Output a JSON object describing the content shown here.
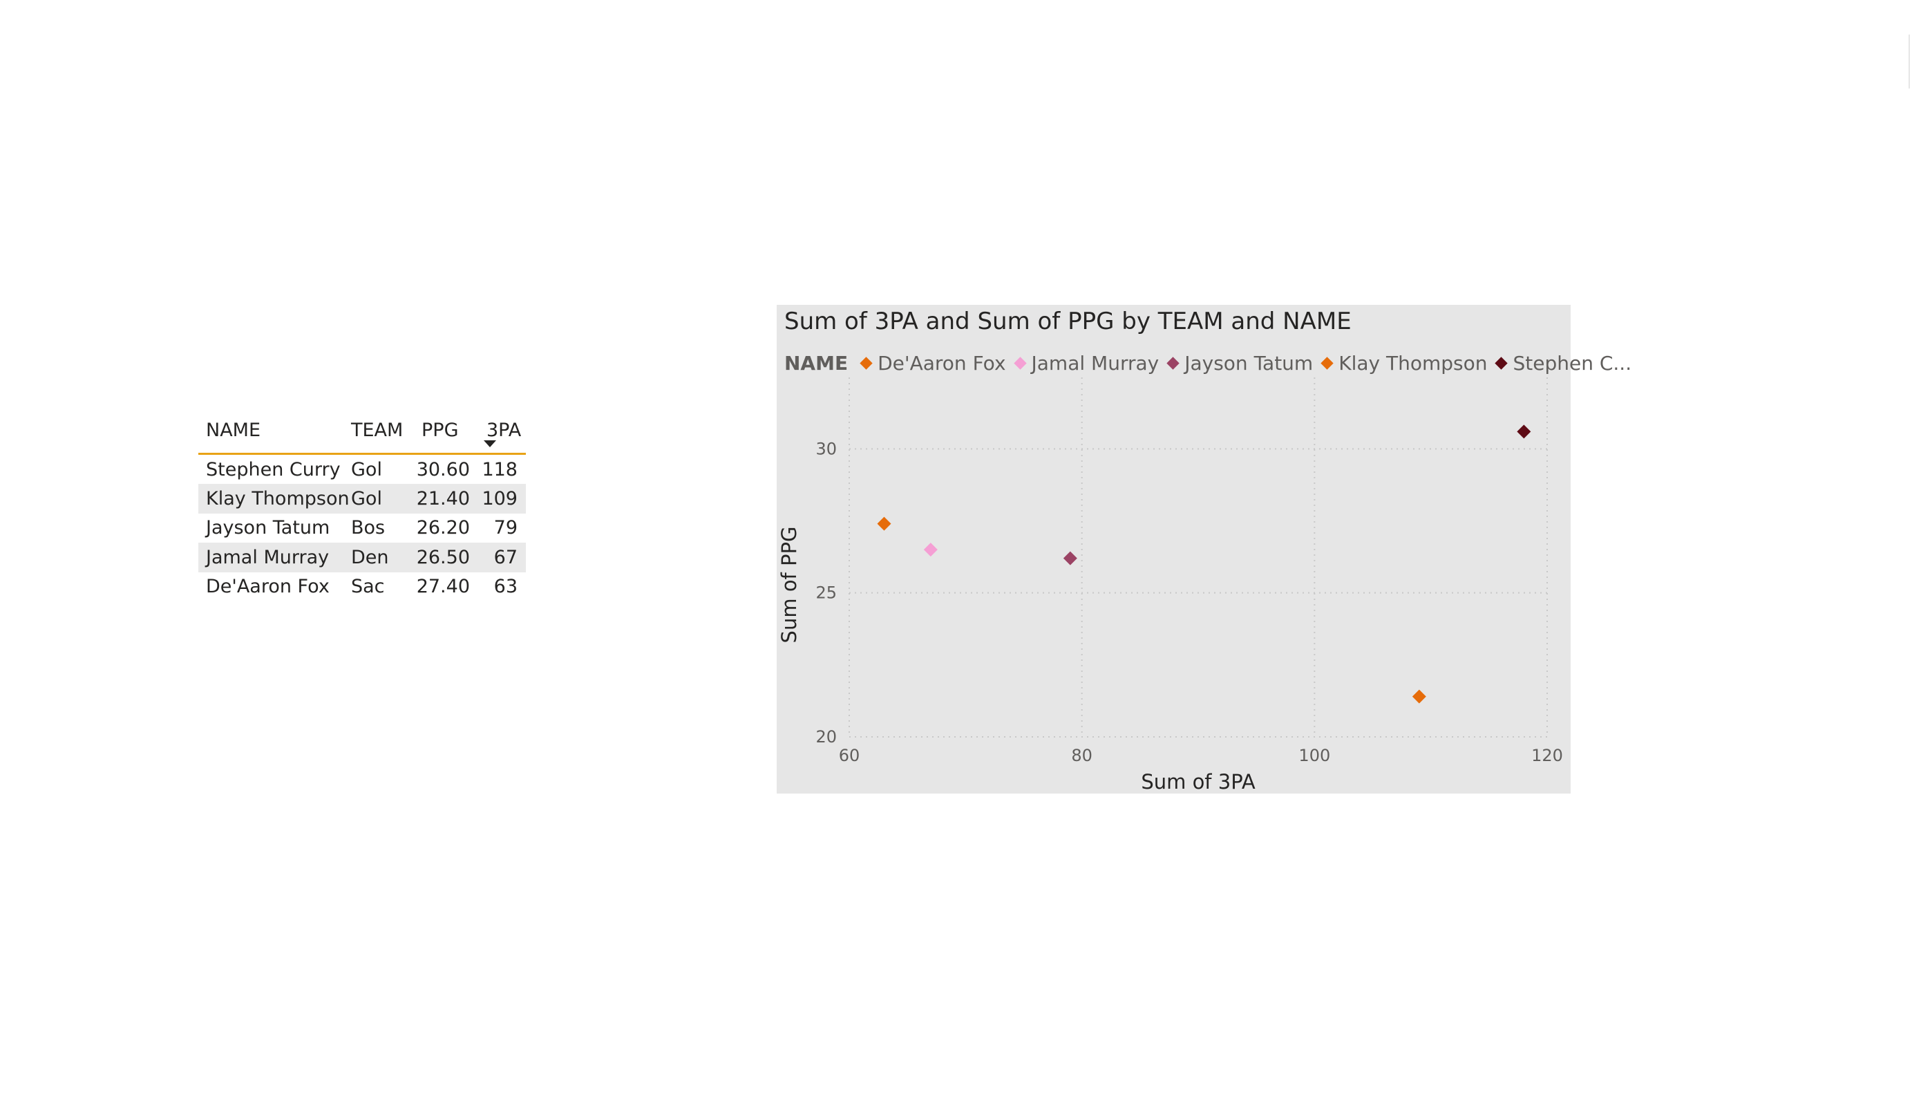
{
  "table": {
    "columns": [
      "NAME",
      "TEAM",
      "PPG",
      "3PA"
    ],
    "rows": [
      [
        "Stephen Curry",
        "Gol",
        "30.60",
        "118"
      ],
      [
        "Klay Thompson",
        "Gol",
        "21.40",
        "109"
      ],
      [
        "Jayson Tatum",
        "Bos",
        "26.20",
        "79"
      ],
      [
        "Jamal Murray",
        "Den",
        "26.50",
        "67"
      ],
      [
        "De'Aaron Fox",
        "Sac",
        "27.40",
        "63"
      ]
    ]
  },
  "chart_data": {
    "type": "scatter",
    "title": "Sum of 3PA and Sum of PPG by TEAM and NAME",
    "xlabel": "Sum of 3PA",
    "ylabel": "Sum of PPG",
    "xlim": [
      60,
      120
    ],
    "ylim": [
      20,
      32
    ],
    "xticks": [
      60,
      80,
      100,
      120
    ],
    "yticks": [
      20,
      25,
      30
    ],
    "grid": true,
    "legend": {
      "title": "NAME",
      "placement": "top",
      "entries": [
        {
          "label": "De'Aaron Fox",
          "color": "#e66c0a"
        },
        {
          "label": "Jamal Murray",
          "color": "#f59fd4"
        },
        {
          "label": "Jayson Tatum",
          "color": "#9b4364"
        },
        {
          "label": "Klay Thompson",
          "color": "#e66c0a"
        },
        {
          "label": "Stephen C...",
          "color": "#5e0b15"
        }
      ]
    },
    "series": [
      {
        "name": "De'Aaron Fox",
        "team": "Sac",
        "color": "#e66c0a",
        "x": [
          63
        ],
        "y": [
          27.4
        ]
      },
      {
        "name": "Jamal Murray",
        "team": "Den",
        "color": "#f59fd4",
        "x": [
          67
        ],
        "y": [
          26.5
        ]
      },
      {
        "name": "Jayson Tatum",
        "team": "Bos",
        "color": "#9b4364",
        "x": [
          79
        ],
        "y": [
          26.2
        ]
      },
      {
        "name": "Klay Thompson",
        "team": "Gol",
        "color": "#e66c0a",
        "x": [
          109
        ],
        "y": [
          21.4
        ]
      },
      {
        "name": "Stephen Curry",
        "team": "Gol",
        "color": "#5e0b15",
        "x": [
          118
        ],
        "y": [
          30.6
        ]
      }
    ]
  }
}
